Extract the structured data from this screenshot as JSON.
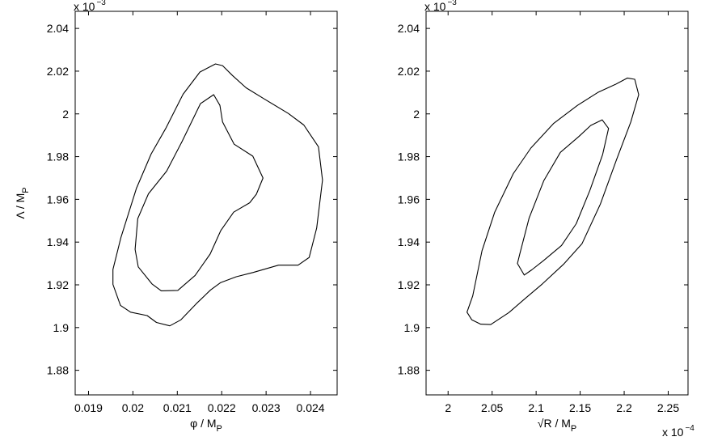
{
  "chart_data": [
    {
      "type": "contour",
      "panel": "left",
      "xlabel": {
        "main": "φ / M",
        "sub": "P"
      },
      "ylabel": {
        "main": "Λ / M",
        "sub": "P"
      },
      "x_multiplier": "",
      "y_multiplier": {
        "base": "x 10",
        "exp": "−3"
      },
      "xlim": [
        0.0187,
        0.0246
      ],
      "ylim": [
        1.8685,
        2.048
      ],
      "xticks": [
        0.019,
        0.02,
        0.021,
        0.022,
        0.023,
        0.024
      ],
      "xtick_labels": [
        "0.019",
        "0.02",
        "0.021",
        "0.022",
        "0.023",
        "0.024"
      ],
      "yticks": [
        1.88,
        1.9,
        1.92,
        1.94,
        1.96,
        1.98,
        2.0,
        2.02,
        2.04
      ],
      "ytick_labels": [
        "1.88",
        "1.9",
        "1.92",
        "1.94",
        "1.96",
        "1.98",
        "2",
        "2.02",
        "2.04"
      ],
      "contours": [
        {
          "level": "outer",
          "points": [
            [
              0.02186,
              2.0234
            ],
            [
              0.02151,
              2.0196
            ],
            [
              0.02113,
              2.0092
            ],
            [
              0.02074,
              1.9932
            ],
            [
              0.02041,
              1.9812
            ],
            [
              0.02008,
              1.9652
            ],
            [
              0.01973,
              1.9422
            ],
            [
              0.01955,
              1.9272
            ],
            [
              0.01955,
              1.9202
            ],
            [
              0.01972,
              1.9104
            ],
            [
              0.01995,
              1.9072
            ],
            [
              0.02032,
              1.9056
            ],
            [
              0.02053,
              1.9024
            ],
            [
              0.02083,
              1.9008
            ],
            [
              0.02108,
              1.9036
            ],
            [
              0.02143,
              1.9112
            ],
            [
              0.02175,
              1.9176
            ],
            [
              0.02197,
              1.921
            ],
            [
              0.02233,
              1.9238
            ],
            [
              0.02271,
              1.9258
            ],
            [
              0.02328,
              1.9292
            ],
            [
              0.02372,
              1.9292
            ],
            [
              0.02397,
              1.9328
            ],
            [
              0.02414,
              1.9466
            ],
            [
              0.02427,
              1.969
            ],
            [
              0.02418,
              1.9846
            ],
            [
              0.02385,
              1.9948
            ],
            [
              0.0235,
              2.0002
            ],
            [
              0.02296,
              2.007
            ],
            [
              0.02255,
              2.0122
            ],
            [
              0.02224,
              2.018
            ],
            [
              0.02202,
              2.0226
            ],
            [
              0.02186,
              2.0234
            ]
          ]
        },
        {
          "level": "inner",
          "points": [
            [
              0.02182,
              2.009
            ],
            [
              0.02152,
              2.0048
            ],
            [
              0.02111,
              1.9872
            ],
            [
              0.02076,
              1.9732
            ],
            [
              0.02035,
              1.9626
            ],
            [
              0.02011,
              1.951
            ],
            [
              0.02005,
              1.9366
            ],
            [
              0.02012,
              1.9284
            ],
            [
              0.02043,
              1.9204
            ],
            [
              0.02064,
              1.9172
            ],
            [
              0.02101,
              1.9174
            ],
            [
              0.0214,
              1.9244
            ],
            [
              0.02174,
              1.9344
            ],
            [
              0.02198,
              1.9454
            ],
            [
              0.02227,
              1.954
            ],
            [
              0.02263,
              1.9584
            ],
            [
              0.02278,
              1.9624
            ],
            [
              0.02293,
              1.97
            ],
            [
              0.0227,
              1.9802
            ],
            [
              0.02228,
              1.9858
            ],
            [
              0.02202,
              1.9962
            ],
            [
              0.02196,
              2.004
            ],
            [
              0.02182,
              2.009
            ]
          ]
        }
      ]
    },
    {
      "type": "contour",
      "panel": "right",
      "xlabel": {
        "main": "√R / M",
        "sub": "P"
      },
      "ylabel": {
        "main": "",
        "sub": ""
      },
      "x_multiplier": {
        "base": "x 10",
        "exp": "−4"
      },
      "y_multiplier": {
        "base": "x 10",
        "exp": "−3"
      },
      "xlim": [
        1.975,
        2.2725
      ],
      "ylim": [
        1.8685,
        2.048
      ],
      "xticks": [
        2.0,
        2.05,
        2.1,
        2.15,
        2.2,
        2.25
      ],
      "xtick_labels": [
        "2",
        "2.05",
        "2.1",
        "2.15",
        "2.2",
        "2.25"
      ],
      "yticks": [
        1.88,
        1.9,
        1.92,
        1.94,
        1.96,
        1.98,
        2.0,
        2.02,
        2.04
      ],
      "ytick_labels": [
        "1.88",
        "1.9",
        "1.92",
        "1.94",
        "1.96",
        "1.98",
        "2",
        "2.02",
        "2.04"
      ],
      "contours": [
        {
          "level": "outer",
          "points": [
            [
              2.0215,
              1.9072
            ],
            [
              2.028,
              1.9148
            ],
            [
              2.0385,
              1.936
            ],
            [
              2.053,
              1.954
            ],
            [
              2.074,
              1.972
            ],
            [
              2.094,
              1.984
            ],
            [
              2.12,
              1.9956
            ],
            [
              2.147,
              2.004
            ],
            [
              2.17,
              2.01
            ],
            [
              2.19,
              2.0138
            ],
            [
              2.2037,
              2.0168
            ],
            [
              2.212,
              2.0162
            ],
            [
              2.2165,
              2.009
            ],
            [
              2.2075,
              1.9962
            ],
            [
              2.191,
              1.9782
            ],
            [
              2.173,
              1.9578
            ],
            [
              2.152,
              1.9392
            ],
            [
              2.131,
              1.9296
            ],
            [
              2.107,
              1.9204
            ],
            [
              2.088,
              1.9138
            ],
            [
              2.069,
              1.907
            ],
            [
              2.0485,
              1.9014
            ],
            [
              2.037,
              1.9016
            ],
            [
              2.027,
              1.9036
            ],
            [
              2.0215,
              1.9072
            ]
          ]
        },
        {
          "level": "inner",
          "points": [
            [
              2.0788,
              1.93
            ],
            [
              2.0815,
              1.9346
            ],
            [
              2.092,
              1.9512
            ],
            [
              2.1088,
              1.9688
            ],
            [
              2.1275,
              1.982
            ],
            [
              2.1485,
              1.9894
            ],
            [
              2.162,
              1.9946
            ],
            [
              2.175,
              1.9972
            ],
            [
              2.1822,
              1.9932
            ],
            [
              2.1755,
              1.981
            ],
            [
              2.161,
              1.9642
            ],
            [
              2.1455,
              1.9486
            ],
            [
              2.1288,
              1.9384
            ],
            [
              2.1085,
              1.9314
            ],
            [
              2.095,
              1.927
            ],
            [
              2.0865,
              1.9246
            ],
            [
              2.0788,
              1.93
            ]
          ]
        }
      ]
    }
  ]
}
